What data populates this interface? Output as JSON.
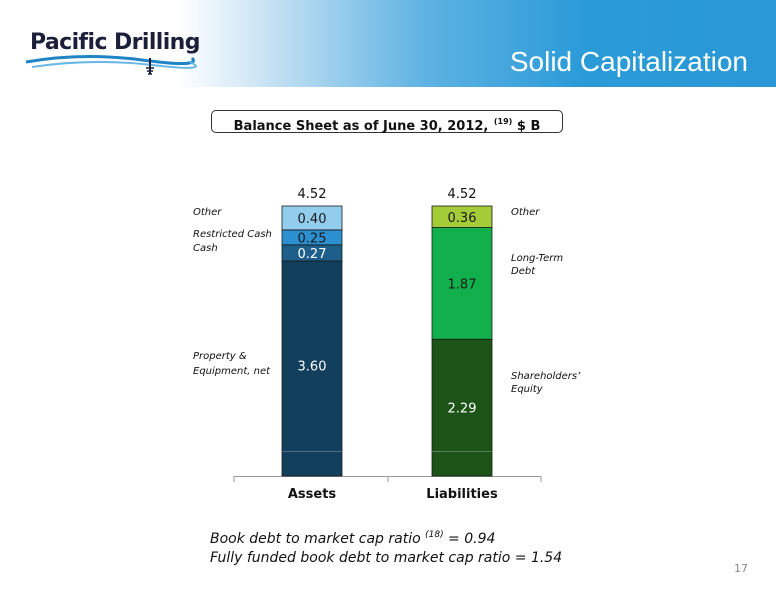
{
  "slide": {
    "title": "Solid Capitalization",
    "page_number": "17"
  },
  "logo": {
    "text": "Pacific Drilling"
  },
  "subtitle": {
    "text": "Balance Sheet as of June 30, 2012,",
    "footnote_ref": "(19)",
    "unit": "$ B"
  },
  "notes": [
    {
      "text": "Book debt to market cap ratio",
      "ref": "(18)",
      "suffix": " = 0.94"
    },
    {
      "text": "Fully funded book debt to market cap ratio = 1.54",
      "ref": "",
      "suffix": ""
    }
  ],
  "colors": {
    "header_blue": "#2a98d6",
    "assets_other": "#93cdee",
    "assets_restricted_cash": "#2b8fd0",
    "assets_cash": "#1d5f8a",
    "assets_ppe": "#123f5e",
    "liab_other": "#a4cc39",
    "liab_ltd": "#12b04c",
    "liab_equity": "#1b5416"
  },
  "chart_data": {
    "type": "bar",
    "stacked": true,
    "categories": [
      "Assets",
      "Liabilities"
    ],
    "totals": [
      "4.52",
      "4.52"
    ],
    "ylim": [
      0,
      4.8
    ],
    "stacks": [
      {
        "category": "Assets",
        "segments": [
          {
            "label": "Property & Equipment, net",
            "value": 3.6,
            "color": "#123f5e"
          },
          {
            "label": "Cash",
            "value": 0.27,
            "color": "#1d5f8a"
          },
          {
            "label": "Restricted Cash",
            "value": 0.25,
            "color": "#2b8fd0"
          },
          {
            "label": "Other",
            "value": 0.4,
            "color": "#93cdee"
          }
        ]
      },
      {
        "category": "Liabilities",
        "segments": [
          {
            "label": "Shareholders' Equity",
            "value": 2.29,
            "color": "#1b5416"
          },
          {
            "label": "Long-Term Debt",
            "value": 1.87,
            "color": "#12b04c"
          },
          {
            "label": "Other",
            "value": 0.36,
            "color": "#a4cc39"
          }
        ]
      }
    ]
  }
}
